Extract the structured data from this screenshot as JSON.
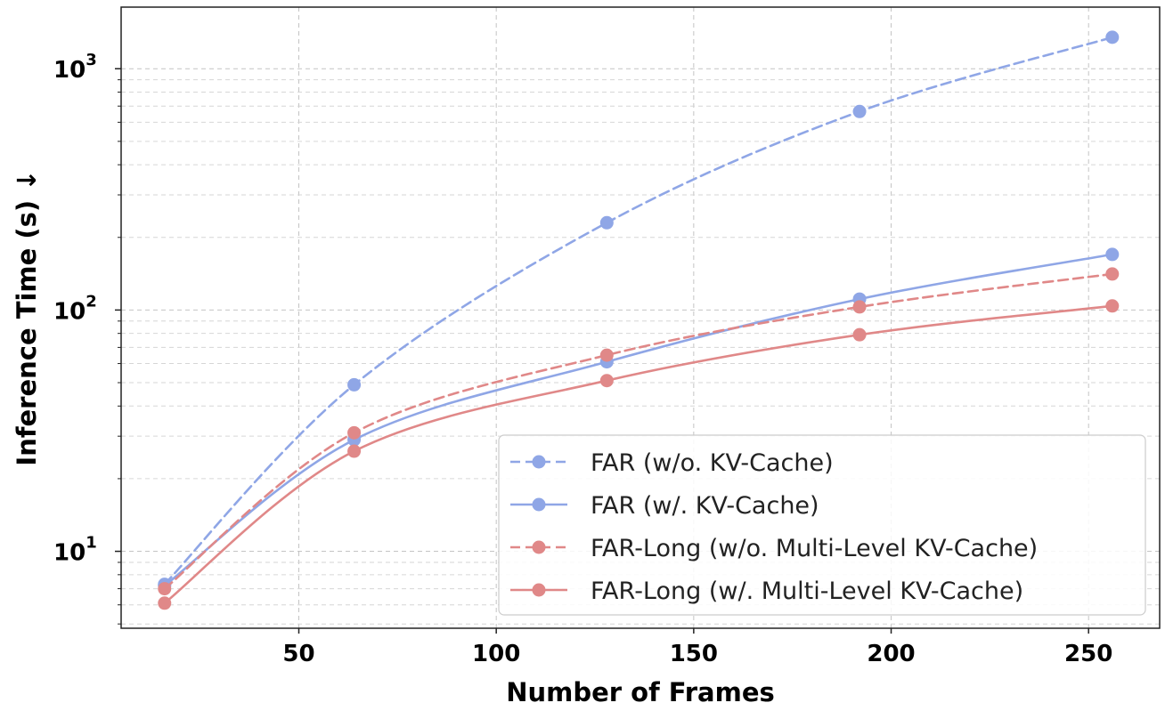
{
  "chart_data": {
    "type": "line",
    "xlabel": "Number of Frames",
    "ylabel": "Inference Time (s)  ↓",
    "xscale": "linear",
    "yscale": "log",
    "xlim": [
      5,
      268
    ],
    "ylim": [
      4.8,
      1800
    ],
    "xticks": [
      50,
      100,
      150,
      200,
      250
    ],
    "yticks": [
      {
        "value": 10,
        "base": "10",
        "exp": "1"
      },
      {
        "value": 100,
        "base": "10",
        "exp": "2"
      },
      {
        "value": 1000,
        "base": "10",
        "exp": "3"
      }
    ],
    "grid": true,
    "legend_position": "lower-right",
    "series": [
      {
        "name": "FAR (w/o. KV-Cache)",
        "color": "#8fa6e6",
        "style": "dashed",
        "x": [
          16,
          64,
          128,
          192,
          256
        ],
        "y": [
          7.3,
          49,
          230,
          665,
          1350
        ]
      },
      {
        "name": "FAR (w/. KV-Cache)",
        "color": "#8fa6e6",
        "style": "solid",
        "x": [
          16,
          64,
          128,
          192,
          256
        ],
        "y": [
          7.2,
          29,
          61,
          111,
          170
        ]
      },
      {
        "name": "FAR-Long (w/o. Multi-Level KV-Cache)",
        "color": "#e08888",
        "style": "dashed",
        "x": [
          16,
          64,
          128,
          192,
          256
        ],
        "y": [
          7.0,
          31,
          65,
          103,
          141
        ]
      },
      {
        "name": "FAR-Long (w/. Multi-Level KV-Cache)",
        "color": "#e08888",
        "style": "solid",
        "x": [
          16,
          64,
          128,
          192,
          256
        ],
        "y": [
          6.1,
          26,
          51,
          79,
          104
        ]
      }
    ]
  }
}
